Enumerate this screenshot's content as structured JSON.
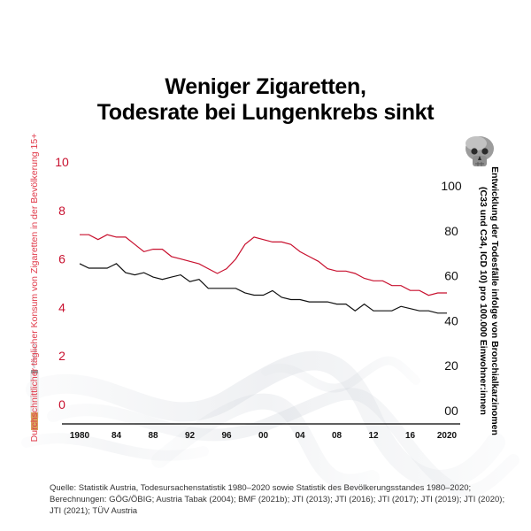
{
  "title": {
    "line1": "Weniger Zigaretten,",
    "line2": "Todesrate bei Lungenkrebs sinkt"
  },
  "source_text": "Quelle: Statistik Austria, Todesursachenstatistik 1980–2020 sowie Statistik des Bevölkerungsstandes 1980–2020; Berechnungen: GÖG/ÖBIG; Austria Tabak (2004); BMF (2021b); JTI (2013); JTI (2016); JTI (2017); JTI (2019); JTI (2020); JTI (2021); TÜV Austria",
  "icons": [
    "skull-icon",
    "cigarette-icon"
  ],
  "colors": {
    "cigarettes": "#c8102e",
    "mortality": "#111111",
    "axis": "#000000"
  },
  "chart_data": {
    "type": "line",
    "x_tick_labels": [
      "1980",
      "84",
      "88",
      "92",
      "96",
      "00",
      "04",
      "08",
      "12",
      "16",
      "2020"
    ],
    "x_tick_years": [
      1980,
      1984,
      1988,
      1992,
      1996,
      2000,
      2004,
      2008,
      2012,
      2016,
      2020
    ],
    "xlim": [
      1980,
      2020
    ],
    "left_axis": {
      "label": "Durchschnittlicher täglicher Konsum von Zigaretten in der Bevölkerung 15+",
      "ticks": [
        "0",
        "2",
        "4",
        "6",
        "8",
        "10"
      ],
      "ylim": [
        0,
        10
      ]
    },
    "right_axis": {
      "label_line1": "Entwicklung der Todesfälle infolge von Bronchialkarzinomen",
      "label_line2": "(C33 und C34, ICD 10) pro 100.000 Einwohner:innen",
      "ticks": [
        "00",
        "20",
        "40",
        "60",
        "80",
        "100"
      ],
      "ylim": [
        0,
        100
      ]
    },
    "series": [
      {
        "name": "Zigarettenkonsum",
        "axis": "left",
        "color": "#c8102e",
        "x": [
          1980,
          1981,
          1982,
          1983,
          1984,
          1985,
          1986,
          1987,
          1988,
          1989,
          1990,
          1991,
          1992,
          1993,
          1994,
          1995,
          1996,
          1997,
          1998,
          1999,
          2000,
          2001,
          2002,
          2003,
          2004,
          2005,
          2006,
          2007,
          2008,
          2009,
          2010,
          2011,
          2012,
          2013,
          2014,
          2015,
          2016,
          2017,
          2018,
          2019,
          2020
        ],
        "values": [
          7.0,
          7.0,
          6.8,
          7.0,
          6.9,
          6.9,
          6.6,
          6.3,
          6.4,
          6.4,
          6.1,
          6.0,
          5.9,
          5.8,
          5.6,
          5.4,
          5.6,
          6.0,
          6.6,
          6.9,
          6.8,
          6.7,
          6.7,
          6.6,
          6.3,
          6.1,
          5.9,
          5.6,
          5.5,
          5.5,
          5.4,
          5.2,
          5.1,
          5.1,
          4.9,
          4.9,
          4.7,
          4.7,
          4.5,
          4.6,
          4.6
        ]
      },
      {
        "name": "Todesfälle Bronchialkarzinom",
        "axis": "right",
        "color": "#111111",
        "x": [
          1980,
          1981,
          1982,
          1983,
          1984,
          1985,
          1986,
          1987,
          1988,
          1989,
          1990,
          1991,
          1992,
          1993,
          1994,
          1995,
          1996,
          1997,
          1998,
          1999,
          2000,
          2001,
          2002,
          2003,
          2004,
          2005,
          2006,
          2007,
          2008,
          2009,
          2010,
          2011,
          2012,
          2013,
          2014,
          2015,
          2016,
          2017,
          2018,
          2019,
          2020
        ],
        "values": [
          65,
          63,
          63,
          63,
          65,
          61,
          60,
          61,
          59,
          58,
          59,
          60,
          57,
          58,
          54,
          54,
          54,
          54,
          52,
          51,
          51,
          53,
          50,
          49,
          49,
          48,
          48,
          48,
          47,
          47,
          44,
          47,
          44,
          44,
          44,
          46,
          45,
          44,
          44,
          43,
          43
        ]
      }
    ]
  }
}
